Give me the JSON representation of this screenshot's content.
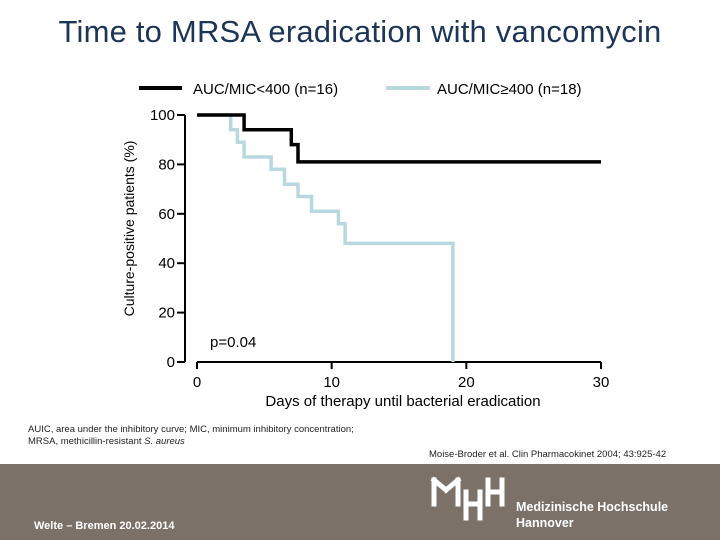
{
  "slide": {
    "title": "Time to MRSA eradication with vancomycin"
  },
  "chart_data": {
    "type": "line",
    "step": true,
    "ylabel": "Culture-positive patients (%)",
    "xlabel": "Days of therapy until bacterial eradication",
    "xlim": [
      0,
      30
    ],
    "ylim": [
      0,
      100
    ],
    "xticks": [
      0,
      10,
      20,
      30
    ],
    "yticks": [
      0,
      20,
      40,
      60,
      80,
      100
    ],
    "x_axis_offset_to_left": true,
    "legend_position": "top",
    "annotation": "p=0.04",
    "series": [
      {
        "name": "AUC/MIC<400 (n=16)",
        "color": "#000000",
        "points": [
          [
            0,
            100
          ],
          [
            3.5,
            100
          ],
          [
            3.5,
            94
          ],
          [
            7,
            94
          ],
          [
            7,
            88
          ],
          [
            7.5,
            88
          ],
          [
            7.5,
            81
          ],
          [
            30,
            81
          ]
        ]
      },
      {
        "name": "AUC/MIC≥400 (n=18)",
        "color": "#b8d8e0",
        "points": [
          [
            0,
            100
          ],
          [
            2.5,
            100
          ],
          [
            2.5,
            94
          ],
          [
            3,
            94
          ],
          [
            3,
            89
          ],
          [
            3.5,
            89
          ],
          [
            3.5,
            83
          ],
          [
            5.5,
            83
          ],
          [
            5.5,
            78
          ],
          [
            6.5,
            78
          ],
          [
            6.5,
            72
          ],
          [
            7.5,
            72
          ],
          [
            7.5,
            67
          ],
          [
            8.5,
            67
          ],
          [
            8.5,
            61
          ],
          [
            10.5,
            61
          ],
          [
            10.5,
            56
          ],
          [
            11,
            56
          ],
          [
            11,
            48
          ],
          [
            19,
            48
          ],
          [
            19,
            0
          ]
        ]
      }
    ]
  },
  "footnote": {
    "line1": "AUIC, area under the inhibitory curve; MIC, minimum inhibitory concentration;",
    "line2_prefix": "MRSA, methicillin-resistant ",
    "line2_italic": "S. aureus"
  },
  "reference": "Moise-Broder et al. Clin Pharmacokinet 2004; 43:925-42",
  "footer": {
    "left_text": "Welte – Bremen 20.02.2014",
    "logo_name_line1": "Medizinische Hochschule",
    "logo_name_line2": "Hannover",
    "logo_mark": "MHH"
  },
  "colors": {
    "title": "#1d3557",
    "footer_bg": "#7b7169",
    "axis": "#000000"
  }
}
